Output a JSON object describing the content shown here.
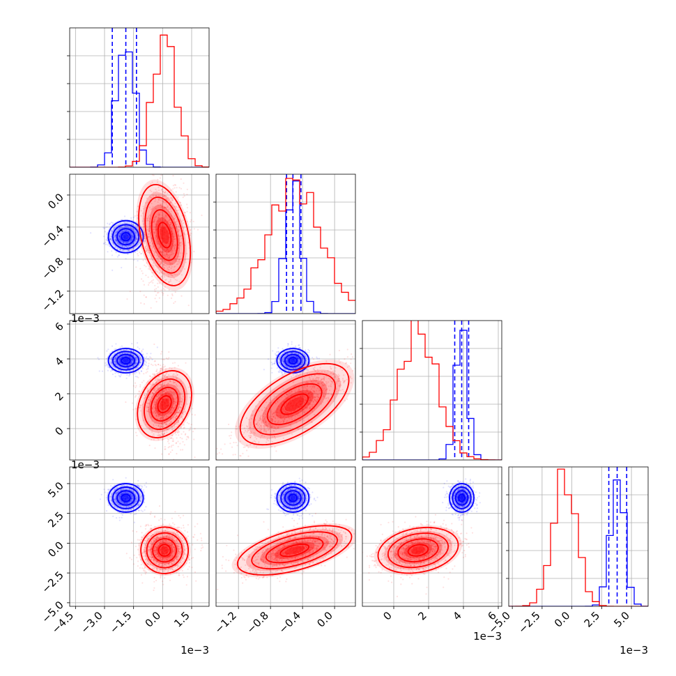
{
  "chart_data": {
    "type": "corner",
    "grid": true,
    "axis_offset_label": "1e−3",
    "colors": {
      "series_a": "#0000ff",
      "series_b": "#ff0000"
    },
    "parameters": [
      {
        "range": [
          -0.0048,
          0.0024
        ],
        "ticks": [
          -0.0045,
          -0.003,
          -0.0015,
          0.0,
          0.0015
        ],
        "tick_labels": [
          "−4.5",
          "−3.0",
          "−1.5",
          "0.0",
          "1.5"
        ]
      },
      {
        "range": [
          -0.00148,
          0.00026
        ],
        "ticks": [
          -0.0012,
          -0.0008,
          -0.0004,
          0.0
        ],
        "tick_labels": [
          "−1.2",
          "−0.8",
          "−0.4",
          "0.0"
        ]
      },
      {
        "range": [
          -0.0018,
          0.0062
        ],
        "ticks": [
          0.0,
          0.002,
          0.004,
          0.006
        ],
        "tick_labels": [
          "0",
          "2",
          "4",
          "6"
        ]
      },
      {
        "range": [
          -0.0053,
          0.0064
        ],
        "ticks": [
          -0.005,
          -0.0025,
          0.0,
          0.0025,
          0.005
        ],
        "tick_labels": [
          "−5.0",
          "−2.5",
          "0.0",
          "2.5",
          "5.0"
        ]
      }
    ],
    "series": [
      {
        "color": "#0000ff",
        "means": [
          -0.0019,
          -0.00052,
          0.0039,
          0.0038
        ],
        "sds": [
          0.00045,
          0.0001,
          0.00035,
          0.0006
        ],
        "quantiles": [
          [
            -0.0026,
            -0.0019,
            -0.00135
          ],
          [
            -0.0006,
            -0.00052,
            -0.00042
          ],
          [
            0.0035,
            0.0039,
            0.0043
          ],
          [
            0.0031,
            0.0038,
            0.0046
          ]
        ]
      },
      {
        "color": "#ff0000",
        "means": [
          0.0001,
          -0.0005,
          0.0014,
          -0.0006
        ],
        "sds": [
          0.0006,
          0.00033,
          0.0011,
          0.001
        ]
      }
    ]
  }
}
